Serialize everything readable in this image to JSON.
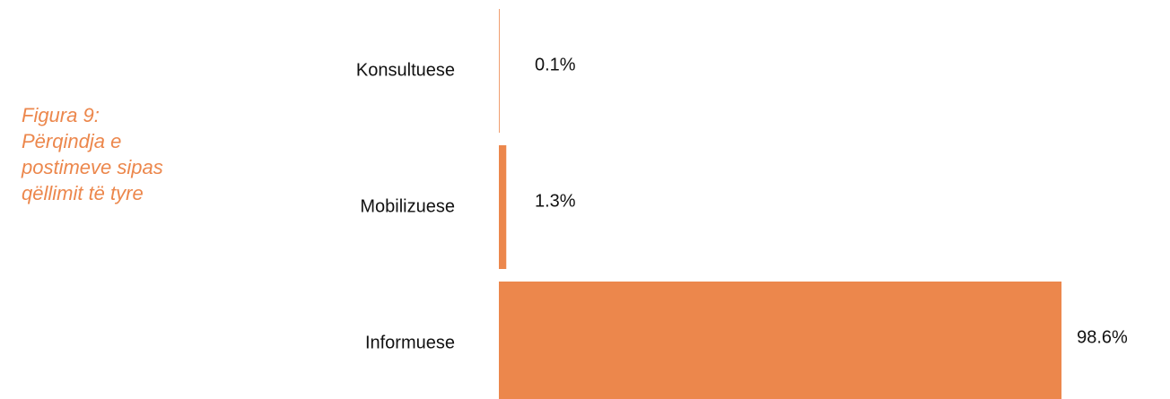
{
  "chart_data": {
    "type": "bar",
    "orientation": "horizontal",
    "title": "Figura 9: Përqindja e postimeve sipas qëllimit të tyre",
    "categories": [
      "Konsultuese",
      "Mobilizuese",
      "Informuese"
    ],
    "values": [
      0.1,
      1.3,
      98.6
    ],
    "value_labels": [
      "0.1%",
      "1.3%",
      "98.6%"
    ],
    "color": "#ec874c",
    "xlim": [
      0,
      100
    ]
  }
}
